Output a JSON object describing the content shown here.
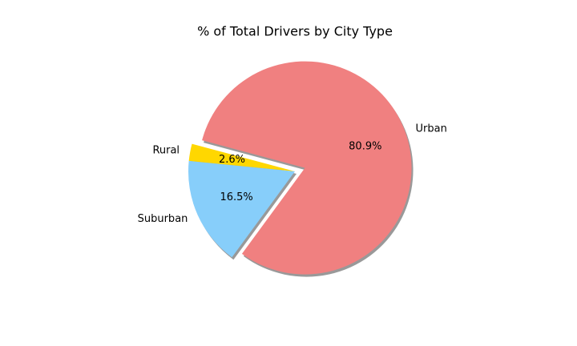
{
  "chart_data": {
    "type": "pie",
    "title": "% of Total Drivers by City Type",
    "categories": [
      "Rural",
      "Suburban",
      "Urban"
    ],
    "values": [
      2.6,
      16.5,
      80.9
    ],
    "value_labels": [
      "2.6%",
      "16.5%",
      "80.9%"
    ],
    "colors": [
      "#ffd700",
      "#87cefa",
      "#f08080"
    ],
    "explode": [
      0,
      0,
      0.1
    ],
    "shadow": true
  }
}
